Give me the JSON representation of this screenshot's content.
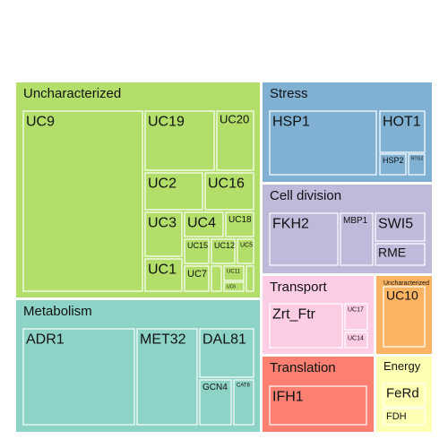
{
  "chart_data": {
    "type": "treemap",
    "title": "",
    "groups": [
      {
        "name": "Uncharacterized",
        "color": "#b3de69",
        "children": [
          {
            "name": "UC9"
          },
          {
            "name": "UC19"
          },
          {
            "name": "UC20"
          },
          {
            "name": "UC2"
          },
          {
            "name": "UC16"
          },
          {
            "name": "UC3"
          },
          {
            "name": "UC4"
          },
          {
            "name": "UC18"
          },
          {
            "name": "UC15"
          },
          {
            "name": "UC12"
          },
          {
            "name": "UC5"
          },
          {
            "name": "UC1"
          },
          {
            "name": "UC7"
          },
          {
            "name": ""
          },
          {
            "name": "UC11"
          },
          {
            "name": "UC6"
          },
          {
            "name": ""
          }
        ]
      },
      {
        "name": "Stress",
        "color": "#80b1d3",
        "children": [
          {
            "name": "HSP1"
          },
          {
            "name": "HOT1"
          },
          {
            "name": "HSP2"
          },
          {
            "name": "RTG2"
          }
        ]
      },
      {
        "name": "Cell division",
        "color": "#bebada",
        "children": [
          {
            "name": "FKH2"
          },
          {
            "name": "MBP1"
          },
          {
            "name": "SWI5"
          },
          {
            "name": "RME"
          }
        ]
      },
      {
        "name": "Metabolism",
        "color": "#8dd3c7",
        "children": [
          {
            "name": "ADR1"
          },
          {
            "name": "MET32"
          },
          {
            "name": "DAL81"
          },
          {
            "name": "GCN4"
          },
          {
            "name": "CAT8"
          }
        ]
      },
      {
        "name": "Transport",
        "color": "#fccde5",
        "children": [
          {
            "name": "Zrt_Ftr"
          },
          {
            "name": "UC17"
          },
          {
            "name": "UC14"
          }
        ]
      },
      {
        "name": "Uncharacterized",
        "color": "#fdb462",
        "children": [
          {
            "name": "UC10"
          }
        ]
      },
      {
        "name": "Translation",
        "color": "#fb8072",
        "children": [
          {
            "name": "IFH1"
          }
        ]
      },
      {
        "name": "Energy",
        "color": "#ffffb3",
        "children": [
          {
            "name": "FeRd"
          },
          {
            "name": "FDH"
          }
        ]
      }
    ]
  }
}
